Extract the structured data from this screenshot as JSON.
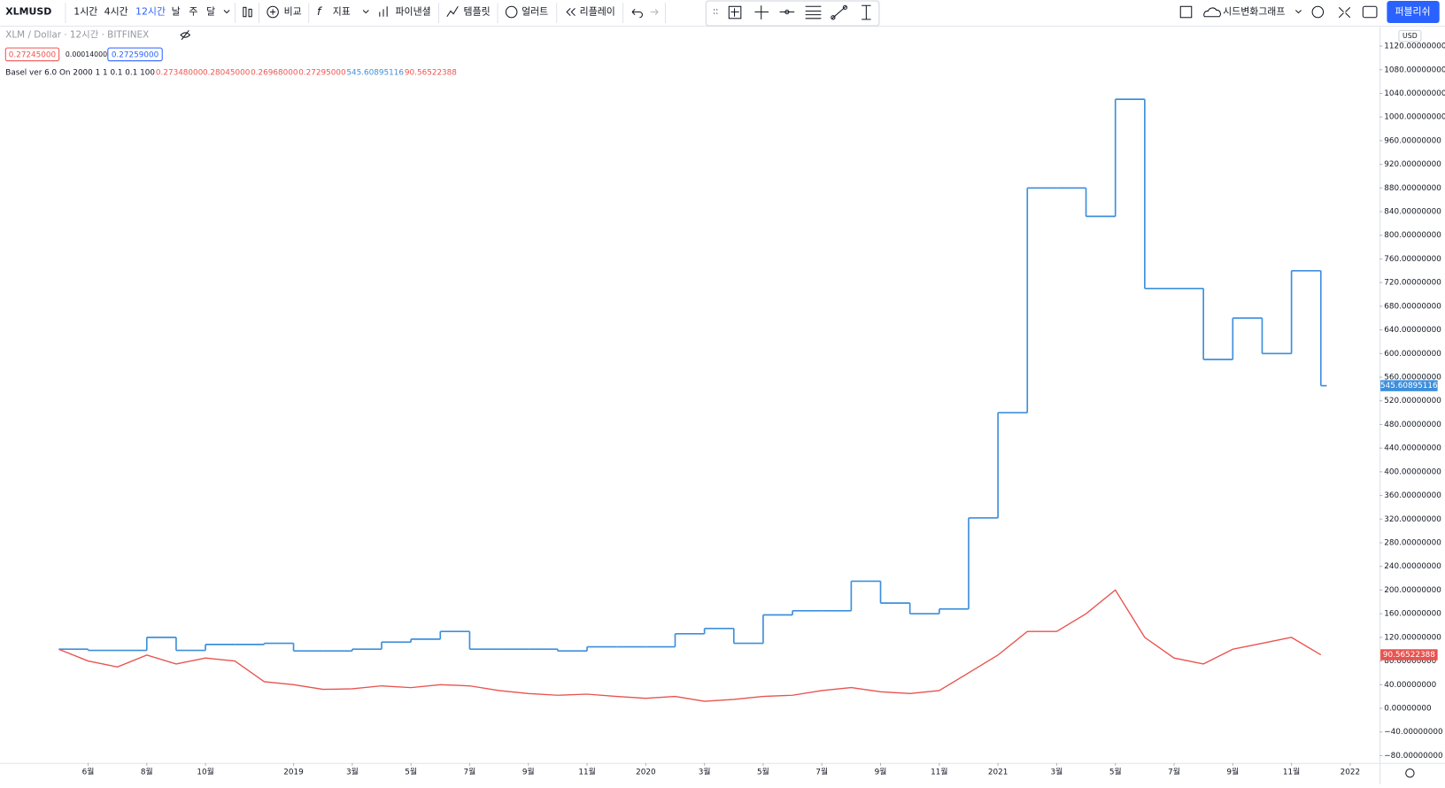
{
  "toolbar": {
    "symbol": "XLMUSD",
    "intervals": [
      "1시간",
      "4시간",
      "12시간",
      "날",
      "주",
      "달"
    ],
    "compare": "비교",
    "indicators": "지표",
    "financials": "파이낸셜",
    "templates": "템플릿",
    "alert": "얼러트",
    "replay": "리플레이",
    "layout_name": "시드변화그래프",
    "publish": "퍼블리쉬"
  },
  "legend": {
    "title": "XLM / Dollar · 12시간 · BITFINEX",
    "bid": "0.27245000",
    "spread": "0.00014000",
    "ask": "0.27259000",
    "indicator": "Basel ver 6.0 On 2000 1 1 0.1 0.1 100",
    "indicator_values": [
      "0.27348000",
      "0.28045000",
      "0.26968000",
      "0.27295000"
    ]
  },
  "chart_data": {
    "type": "line",
    "currency": "USD",
    "x": [
      "2018-05",
      "2018-06",
      "2018-07",
      "2018-08",
      "2018-09",
      "2018-10",
      "2018-11",
      "2018-12",
      "2019-01",
      "2019-02",
      "2019-03",
      "2019-04",
      "2019-05",
      "2019-06",
      "2019-07",
      "2019-08",
      "2019-09",
      "2019-10",
      "2019-11",
      "2019-12",
      "2020-01",
      "2020-02",
      "2020-03",
      "2020-04",
      "2020-05",
      "2020-06",
      "2020-07",
      "2020-08",
      "2020-09",
      "2020-10",
      "2020-11",
      "2020-12",
      "2021-01",
      "2021-02",
      "2021-03",
      "2021-04",
      "2021-05",
      "2021-06",
      "2021-07",
      "2021-08",
      "2021-09",
      "2021-10",
      "2021-11",
      "2021-12"
    ],
    "series": [
      {
        "color": "#3d8fdc",
        "step": true,
        "values": [
          100,
          98,
          98,
          120,
          98,
          108,
          108,
          110,
          97,
          97,
          100,
          112,
          117,
          130,
          100,
          100,
          100,
          97,
          104,
          104,
          104,
          126,
          135,
          110,
          158,
          165,
          165,
          215,
          178,
          160,
          168,
          322,
          500,
          880,
          880,
          832,
          1030,
          710,
          710,
          590,
          660,
          600,
          740,
          545.60895116
        ]
      },
      {
        "color": "#e8534f",
        "step": false,
        "values": [
          100,
          80,
          70,
          90,
          75,
          85,
          80,
          45,
          40,
          32,
          33,
          38,
          35,
          40,
          38,
          30,
          25,
          22,
          24,
          20,
          17,
          20,
          12,
          15,
          20,
          22,
          30,
          35,
          28,
          25,
          30,
          60,
          90,
          130,
          130,
          160,
          200,
          120,
          85,
          75,
          100,
          110,
          120,
          90.56522388
        ]
      }
    ],
    "xlim": [
      "2018-03",
      "2022-02"
    ],
    "xticks": [
      {
        "value": "2018-06",
        "label": "6월"
      },
      {
        "value": "2018-08",
        "label": "8월"
      },
      {
        "value": "2018-10",
        "label": "10월"
      },
      {
        "value": "2019-01",
        "label": "2019"
      },
      {
        "value": "2019-03",
        "label": "3월"
      },
      {
        "value": "2019-05",
        "label": "5월"
      },
      {
        "value": "2019-07",
        "label": "7월"
      },
      {
        "value": "2019-09",
        "label": "9월"
      },
      {
        "value": "2019-11",
        "label": "11월"
      },
      {
        "value": "2020-01",
        "label": "2020"
      },
      {
        "value": "2020-03",
        "label": "3월"
      },
      {
        "value": "2020-05",
        "label": "5월"
      },
      {
        "value": "2020-07",
        "label": "7월"
      },
      {
        "value": "2020-09",
        "label": "9월"
      },
      {
        "value": "2020-11",
        "label": "11월"
      },
      {
        "value": "2021-01",
        "label": "2021"
      },
      {
        "value": "2021-03",
        "label": "3월"
      },
      {
        "value": "2021-05",
        "label": "5월"
      },
      {
        "value": "2021-07",
        "label": "7월"
      },
      {
        "value": "2021-09",
        "label": "9월"
      },
      {
        "value": "2021-11",
        "label": "11월"
      },
      {
        "value": "2022-01",
        "label": "2022"
      }
    ],
    "ylim": [
      -80,
      1120
    ],
    "yticks": [
      {
        "value": -80,
        "label": "−80.00000000"
      },
      {
        "value": -40,
        "label": "−40.00000000"
      },
      {
        "value": 0,
        "label": "0.00000000"
      },
      {
        "value": 40,
        "label": "40.00000000"
      },
      {
        "value": 80,
        "label": "80.00000000"
      },
      {
        "value": 120,
        "label": "120.00000000"
      },
      {
        "value": 160,
        "label": "160.00000000"
      },
      {
        "value": 200,
        "label": "200.00000000"
      },
      {
        "value": 240,
        "label": "240.00000000"
      },
      {
        "value": 280,
        "label": "280.00000000"
      },
      {
        "value": 320,
        "label": "320.00000000"
      },
      {
        "value": 360,
        "label": "360.00000000"
      },
      {
        "value": 400,
        "label": "400.00000000"
      },
      {
        "value": 440,
        "label": "440.00000000"
      },
      {
        "value": 480,
        "label": "480.00000000"
      },
      {
        "value": 520,
        "label": "520.00000000"
      },
      {
        "value": 560,
        "label": "560.00000000"
      },
      {
        "value": 600,
        "label": "600.00000000"
      },
      {
        "value": 640,
        "label": "640.00000000"
      },
      {
        "value": 680,
        "label": "680.00000000"
      },
      {
        "value": 720,
        "label": "720.00000000"
      },
      {
        "value": 760,
        "label": "760.00000000"
      },
      {
        "value": 800,
        "label": "800.00000000"
      },
      {
        "value": 840,
        "label": "840.00000000"
      },
      {
        "value": 880,
        "label": "880.00000000"
      },
      {
        "value": 920,
        "label": "920.00000000"
      },
      {
        "value": 960,
        "label": "960.00000000"
      },
      {
        "value": 1000,
        "label": "1000.00000000"
      },
      {
        "value": 1040,
        "label": "1040.00000000"
      },
      {
        "value": 1080,
        "label": "1080.00000000"
      },
      {
        "value": 1120,
        "label": "1120.00000000"
      }
    ],
    "grid": false
  }
}
